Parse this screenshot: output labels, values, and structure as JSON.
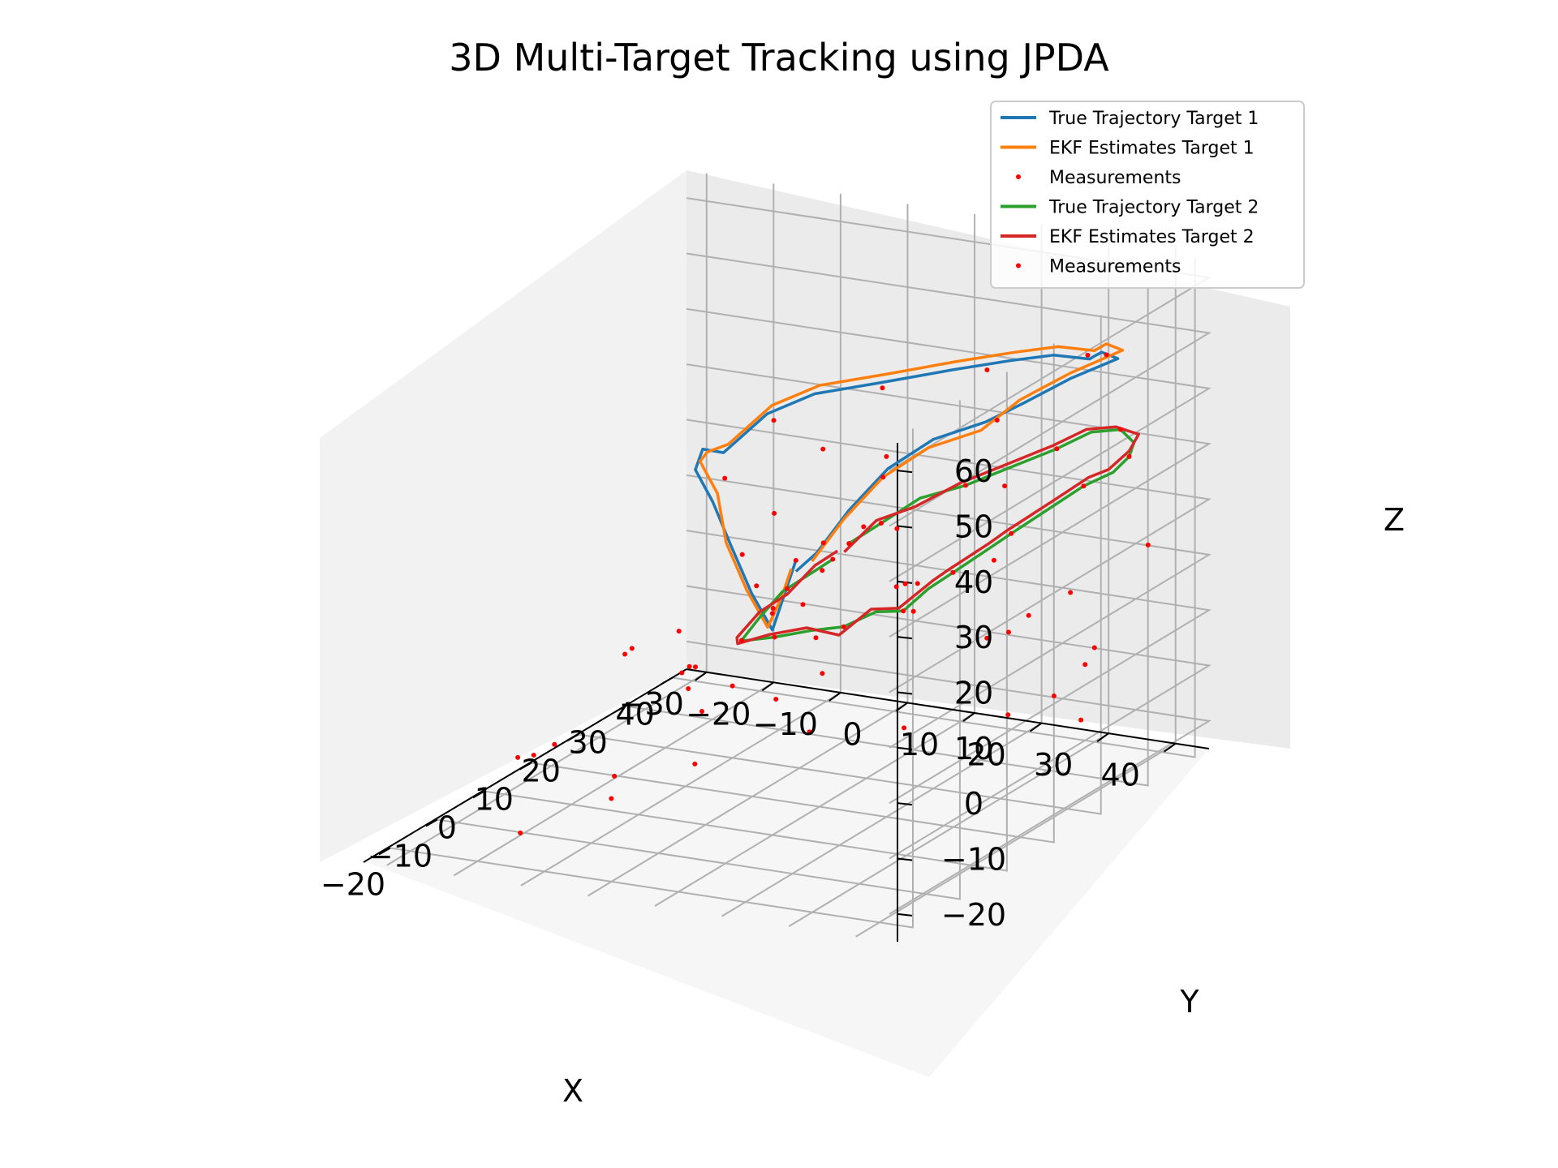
{
  "chart_data": {
    "type": "line",
    "projection": "3d",
    "title": "3D Multi-Target Tracking using JPDA",
    "xlabel": "X",
    "ylabel": "Y",
    "zlabel": "Z",
    "xlim": [
      -25,
      43
    ],
    "ylim": [
      -33,
      45
    ],
    "zlim": [
      -25,
      65
    ],
    "x_ticks": [
      -20,
      -10,
      0,
      10,
      20,
      30,
      40
    ],
    "y_ticks": [
      -30,
      -20,
      -10,
      0,
      10,
      20,
      30,
      40
    ],
    "z_ticks": [
      -20,
      -10,
      0,
      10,
      20,
      30,
      40,
      50,
      60
    ],
    "x_tick_labels": [
      "−20",
      "−10",
      "0",
      "10",
      "20",
      "30",
      "40"
    ],
    "y_tick_labels": [
      "−30",
      "−20",
      "−10",
      "0",
      "10",
      "20",
      "30",
      "40"
    ],
    "z_tick_labels": [
      "−20",
      "−10",
      "0",
      "10",
      "20",
      "30",
      "40",
      "50",
      "60"
    ],
    "grid": true,
    "legend_position": "top-right",
    "series": [
      {
        "name": "True Trajectory Target 1",
        "kind": "line",
        "color": "#1f77b4",
        "points": [
          [
            5,
            10,
            22
          ],
          [
            3,
            10,
            18
          ],
          [
            0,
            10,
            12
          ],
          [
            -3,
            9,
            20
          ],
          [
            -6,
            8,
            30
          ],
          [
            -7,
            6,
            38
          ],
          [
            -5,
            2,
            42
          ],
          [
            -2,
            1,
            44
          ],
          [
            1,
            2,
            42
          ],
          [
            6,
            5,
            47
          ],
          [
            9,
            10,
            50
          ],
          [
            12,
            18,
            52
          ],
          [
            17,
            25,
            53
          ],
          [
            22,
            30,
            53
          ],
          [
            27,
            33,
            52
          ],
          [
            29,
            37,
            51
          ],
          [
            30,
            37,
            51
          ],
          [
            33,
            36,
            50
          ],
          [
            35,
            37,
            48
          ],
          [
            32,
            32,
            45
          ],
          [
            28,
            28,
            42
          ],
          [
            24,
            25,
            40
          ],
          [
            20,
            20,
            38
          ],
          [
            16,
            16,
            34
          ],
          [
            12,
            13,
            28
          ],
          [
            8,
            11,
            22
          ],
          [
            5,
            10,
            20
          ]
        ]
      },
      {
        "name": "EKF Estimates Target 1",
        "kind": "line",
        "color": "#ff7f0e",
        "points": [
          [
            4,
            10,
            21
          ],
          [
            2,
            10,
            17
          ],
          [
            -1,
            10,
            13
          ],
          [
            -4,
            9,
            21
          ],
          [
            -7,
            8,
            31
          ],
          [
            -6,
            6,
            39
          ],
          [
            -4,
            2,
            43
          ],
          [
            -1,
            1,
            43
          ],
          [
            2,
            2,
            43
          ],
          [
            7,
            5,
            48
          ],
          [
            10,
            10,
            51
          ],
          [
            13,
            18,
            53
          ],
          [
            18,
            25,
            54
          ],
          [
            23,
            30,
            54
          ],
          [
            28,
            33,
            53
          ],
          [
            30,
            37,
            52
          ],
          [
            34,
            36,
            51
          ],
          [
            36,
            37,
            49
          ],
          [
            32,
            32,
            46
          ],
          [
            27,
            28,
            43
          ],
          [
            23,
            25,
            39
          ],
          [
            19,
            20,
            37
          ],
          [
            15,
            16,
            33
          ],
          [
            11,
            13,
            27
          ],
          [
            7,
            11,
            21
          ]
        ]
      },
      {
        "name": "Measurements",
        "kind": "scatter",
        "color": "#ff0000",
        "points": [
          [
            5,
            10,
            22
          ],
          [
            0,
            10,
            15
          ],
          [
            -5,
            9,
            28
          ],
          [
            -3,
            5,
            40
          ],
          [
            6,
            6,
            46
          ],
          [
            12,
            18,
            51
          ],
          [
            20,
            28,
            52
          ],
          [
            30,
            36,
            51
          ],
          [
            34,
            36,
            49
          ],
          [
            25,
            26,
            40
          ],
          [
            15,
            16,
            33
          ],
          [
            8,
            12,
            24
          ],
          [
            3,
            8,
            14
          ],
          [
            -10,
            -5,
            10
          ],
          [
            -15,
            -12,
            -5
          ],
          [
            -8,
            -20,
            -12
          ],
          [
            2,
            -15,
            -20
          ],
          [
            12,
            -10,
            -22
          ],
          [
            22,
            -18,
            -15
          ],
          [
            30,
            -25,
            -10
          ],
          [
            35,
            -10,
            -5
          ],
          [
            38,
            5,
            0
          ],
          [
            40,
            15,
            5
          ],
          [
            42,
            25,
            0
          ],
          [
            38,
            30,
            -10
          ],
          [
            30,
            35,
            -15
          ],
          [
            20,
            38,
            -5
          ],
          [
            10,
            35,
            10
          ],
          [
            5,
            25,
            20
          ],
          [
            -5,
            20,
            15
          ],
          [
            -15,
            10,
            5
          ],
          [
            -20,
            0,
            -10
          ],
          [
            -18,
            -15,
            -20
          ],
          [
            0,
            -28,
            -18
          ],
          [
            20,
            -25,
            -8
          ],
          [
            36,
            -15,
            10
          ],
          [
            25,
            0,
            30
          ],
          [
            10,
            20,
            40
          ],
          [
            -2,
            30,
            35
          ],
          [
            15,
            5,
            -15
          ],
          [
            28,
            10,
            -20
          ],
          [
            33,
            22,
            -18
          ],
          [
            40,
            38,
            12
          ],
          [
            18,
            -5,
            8
          ],
          [
            8,
            -8,
            -2
          ]
        ]
      },
      {
        "name": "True Trajectory Target 2",
        "kind": "line",
        "color": "#2ca02c",
        "points": [
          [
            10,
            12,
            20
          ],
          [
            8,
            10,
            18
          ],
          [
            5,
            8,
            16
          ],
          [
            3,
            6,
            12
          ],
          [
            2,
            4,
            8
          ],
          [
            5,
            2,
            6
          ],
          [
            9,
            4,
            5
          ],
          [
            14,
            6,
            4
          ],
          [
            18,
            8,
            3
          ],
          [
            22,
            10,
            4
          ],
          [
            25,
            12,
            3
          ],
          [
            26,
            15,
            7
          ],
          [
            27,
            18,
            10
          ],
          [
            28,
            22,
            14
          ],
          [
            28,
            26,
            18
          ],
          [
            30,
            30,
            22
          ],
          [
            32,
            34,
            26
          ],
          [
            34,
            37,
            28
          ],
          [
            36,
            38,
            30
          ],
          [
            37,
            38,
            32
          ],
          [
            37,
            36,
            34
          ],
          [
            35,
            33,
            34
          ],
          [
            32,
            30,
            32
          ],
          [
            28,
            26,
            30
          ],
          [
            24,
            22,
            28
          ],
          [
            20,
            18,
            27
          ],
          [
            16,
            15,
            24
          ],
          [
            12,
            13,
            22
          ]
        ]
      },
      {
        "name": "EKF Estimates Target 2",
        "kind": "line",
        "color": "#d62728",
        "points": [
          [
            11,
            12,
            21
          ],
          [
            9,
            10,
            19
          ],
          [
            6,
            8,
            15
          ],
          [
            3,
            6,
            13
          ],
          [
            1,
            4,
            9
          ],
          [
            4,
            2,
            6
          ],
          [
            8,
            4,
            6
          ],
          [
            13,
            6,
            5
          ],
          [
            17,
            8,
            2
          ],
          [
            21,
            10,
            5
          ],
          [
            24,
            12,
            4
          ],
          [
            27,
            15,
            8
          ],
          [
            26,
            18,
            11
          ],
          [
            29,
            22,
            15
          ],
          [
            27,
            26,
            19
          ],
          [
            31,
            30,
            23
          ],
          [
            33,
            34,
            27
          ],
          [
            33,
            37,
            29
          ],
          [
            36,
            38,
            31
          ],
          [
            38,
            38,
            33
          ],
          [
            36,
            36,
            35
          ],
          [
            34,
            33,
            35
          ],
          [
            31,
            30,
            33
          ],
          [
            27,
            26,
            31
          ],
          [
            23,
            22,
            29
          ],
          [
            19,
            18,
            26
          ],
          [
            15,
            15,
            25
          ],
          [
            11,
            13,
            21
          ]
        ]
      },
      {
        "name": "Measurements",
        "kind": "scatter",
        "color": "#ff0000",
        "points": [
          [
            10,
            12,
            20
          ],
          [
            6,
            8,
            16
          ],
          [
            2,
            4,
            8
          ],
          [
            9,
            4,
            5
          ],
          [
            18,
            8,
            3
          ],
          [
            25,
            12,
            3
          ],
          [
            27,
            18,
            10
          ],
          [
            28,
            26,
            18
          ],
          [
            32,
            34,
            26
          ],
          [
            36,
            38,
            30
          ],
          [
            37,
            36,
            34
          ],
          [
            32,
            30,
            32
          ],
          [
            24,
            22,
            28
          ],
          [
            16,
            15,
            24
          ],
          [
            12,
            13,
            22
          ],
          [
            22,
            2,
            10
          ],
          [
            30,
            10,
            0
          ],
          [
            36,
            20,
            -5
          ],
          [
            40,
            30,
            -8
          ],
          [
            15,
            0,
            -10
          ],
          [
            5,
            -5,
            0
          ],
          [
            -5,
            0,
            5
          ],
          [
            20,
            -10,
            -12
          ],
          [
            32,
            -5,
            -15
          ],
          [
            38,
            18,
            20
          ],
          [
            26,
            30,
            5
          ],
          [
            14,
            20,
            15
          ],
          [
            8,
            18,
            28
          ]
        ]
      }
    ]
  }
}
